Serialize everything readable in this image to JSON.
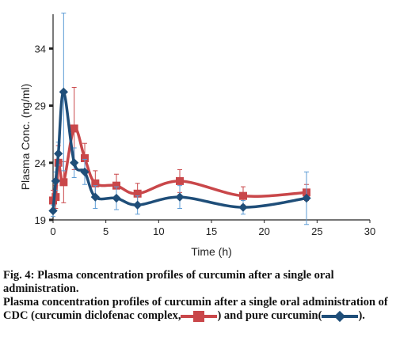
{
  "chart_data": {
    "type": "line",
    "title": "",
    "xlabel": "Time (h)",
    "ylabel": "Plasma Conc. (ng/ml)",
    "xlim": [
      0,
      30
    ],
    "ylim": [
      19,
      37
    ],
    "x_ticks": [
      "0",
      "5",
      "10",
      "15",
      "20",
      "25",
      "30"
    ],
    "y_ticks": [
      "19",
      "24",
      "29",
      "34"
    ],
    "grid": false,
    "smooth": true,
    "x": [
      0,
      0.25,
      0.5,
      1,
      2,
      3,
      4,
      6,
      8,
      12,
      18,
      24
    ],
    "series": [
      {
        "marker": "square",
        "color": "#c9474a",
        "values": [
          20.7,
          21.0,
          24.0,
          22.3,
          27.0,
          24.4,
          22.2,
          22.0,
          21.3,
          22.4,
          21.1,
          21.4
        ],
        "error": [
          0.9,
          1.0,
          1.5,
          1.8,
          3.6,
          1.3,
          1.1,
          1.0,
          0.9,
          1.0,
          0.8,
          0.7
        ]
      },
      {
        "marker": "diamond",
        "color": "#1f4e79",
        "values": [
          19.8,
          22.4,
          24.8,
          30.2,
          24.0,
          23.2,
          21.0,
          20.9,
          20.3,
          21.0,
          20.1,
          20.9
        ],
        "error": [
          0.5,
          0.8,
          1.0,
          6.9,
          1.3,
          1.1,
          1.0,
          1.0,
          0.8,
          1.0,
          0.6,
          2.3
        ]
      }
    ]
  },
  "caption": {
    "fig_label": "Fig. 4",
    "line1_rest": ": Plasma concentration profiles of curcumin after a single oral administration.",
    "line2_start": "Plasma concentration profiles of curcumin after a single oral administration of CDC (curcumin diclofenac complex,",
    "line2_end": ") and pure curcumin(",
    "line3_end": ")."
  }
}
